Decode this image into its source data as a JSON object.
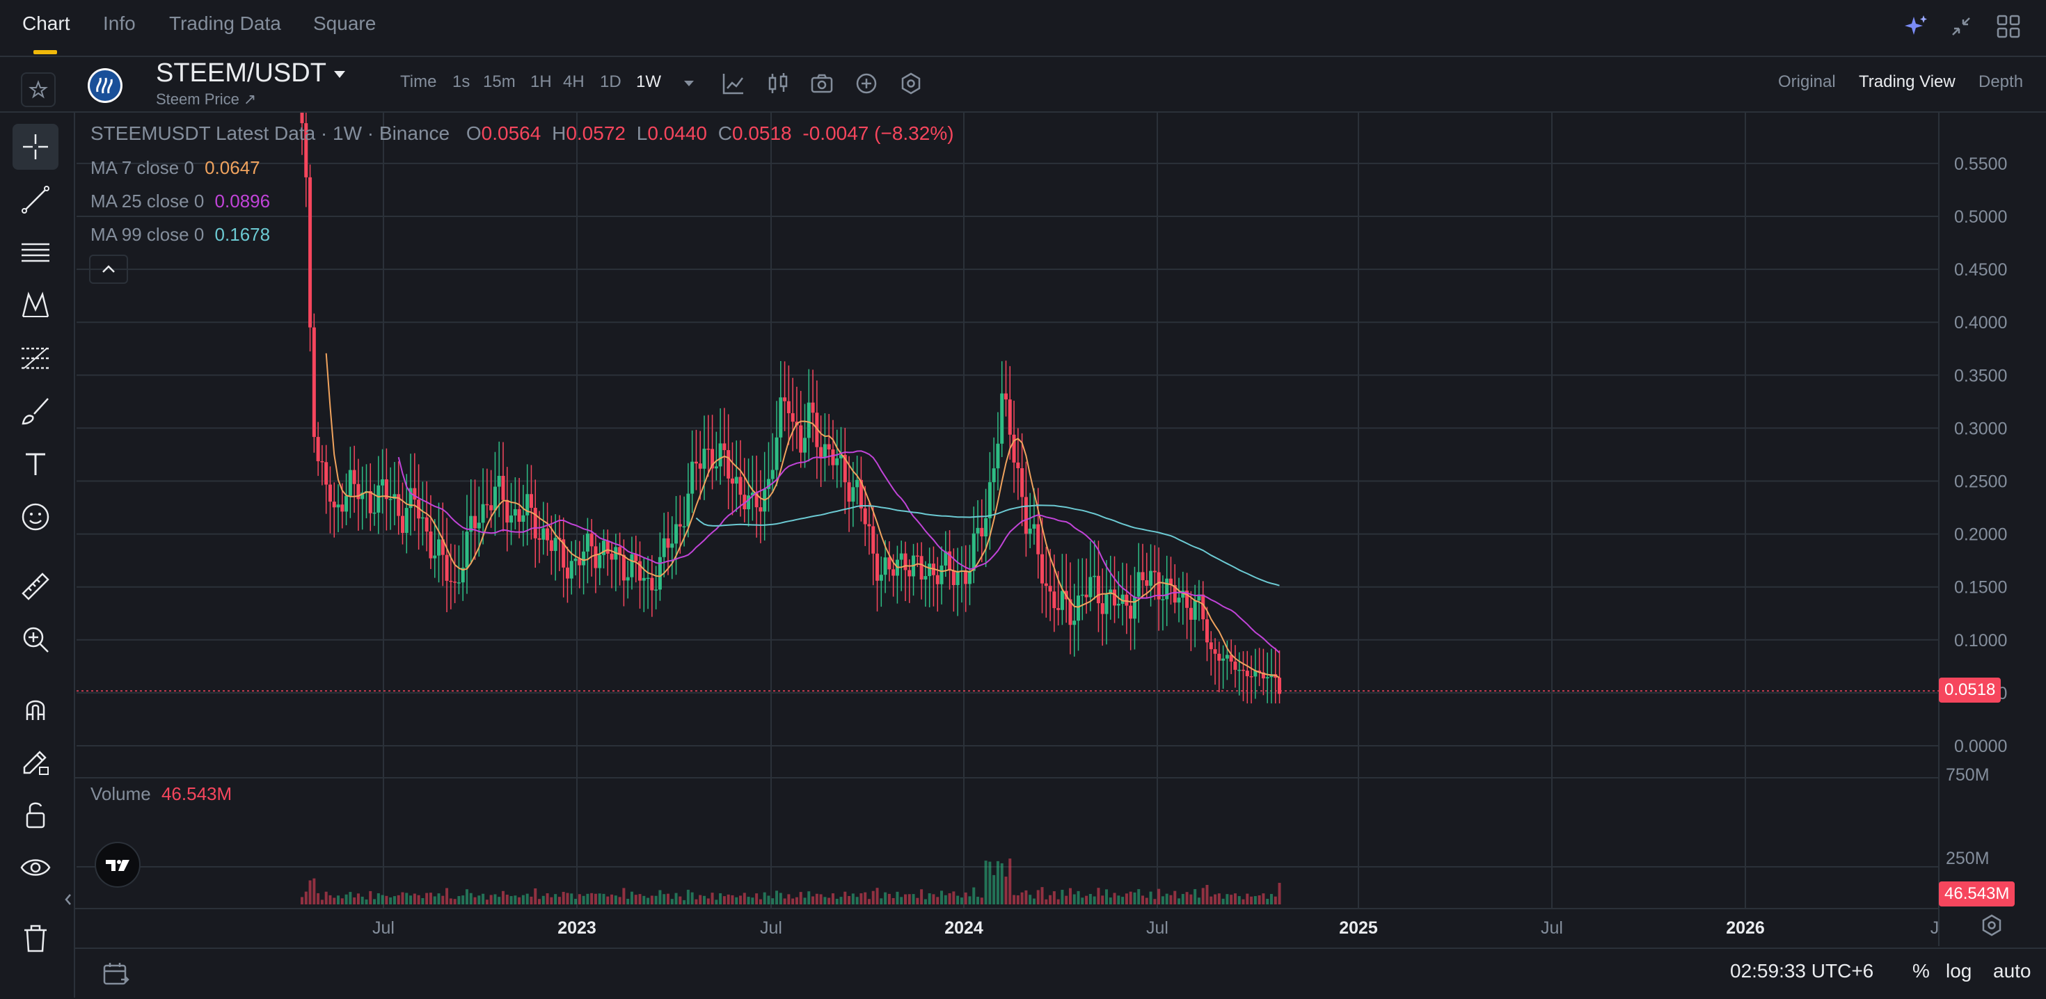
{
  "top_tabs": {
    "items": [
      "Chart",
      "Info",
      "Trading Data",
      "Square"
    ],
    "active": "Chart"
  },
  "header": {
    "pair": "STEEM/USDT",
    "subtitle": "Steem Price ↗",
    "timeframes": [
      "Time",
      "1s",
      "15m",
      "1H",
      "4H",
      "1D",
      "1W"
    ],
    "active_timeframe": "1W",
    "view_options": [
      "Original",
      "Trading View",
      "Depth"
    ],
    "active_view": "Trading View"
  },
  "icons": {
    "top_right": [
      "ai-sparkle-icon",
      "collapse-icon",
      "layout-grid-icon"
    ],
    "header": [
      "favorite-star-icon",
      "steem-logo-icon",
      "pair-dropdown-icon",
      "timeframe-dropdown-icon",
      "indicator-icon",
      "chart-type-icon",
      "screenshot-icon",
      "add-icon",
      "settings-hex-icon"
    ],
    "toolbar": [
      "crosshair-icon",
      "trend-line-icon",
      "horizontal-lines-icon",
      "pattern-icon",
      "fib-icon",
      "brush-icon",
      "text-icon",
      "emoji-icon",
      "ruler-icon",
      "zoom-in-icon",
      "magnet-icon",
      "lock-drawing-icon",
      "lock-icon",
      "eye-icon",
      "trash-icon"
    ]
  },
  "legend": {
    "symbol": "STEEMUSDT Latest Data · 1W · Binance",
    "o_label": "O",
    "o": "0.0564",
    "h_label": "H",
    "h": "0.0572",
    "l_label": "L",
    "l": "0.0440",
    "c_label": "C",
    "c": "0.0518",
    "change": "-0.0047 (−8.32%)",
    "ma7_label": "MA 7 close 0",
    "ma7_value": "0.0647",
    "ma25_label": "MA 25 close 0",
    "ma25_value": "0.0896",
    "ma99_label": "MA 99 close 0",
    "ma99_value": "0.1678",
    "volume_label": "Volume",
    "volume_value": "46.543M"
  },
  "colors": {
    "background": "#181a20",
    "up": "#2ebd85",
    "down": "#f6465d",
    "ma7": "#f0a35e",
    "ma25": "#c144d8",
    "ma99": "#6ccad3",
    "accent": "#f0b90b"
  },
  "chart_data": {
    "type": "candlestick",
    "interval": "1W",
    "price_axis_ticks": [
      "0.5500",
      "0.5000",
      "0.4500",
      "0.4000",
      "0.3500",
      "0.3000",
      "0.2500",
      "0.2000",
      "0.1500",
      "0.1000",
      "0.0500",
      "0.0000"
    ],
    "ylim": [
      0,
      0.58
    ],
    "volume_axis_ticks": [
      "750M",
      "250M"
    ],
    "volume_ylim": [
      0,
      1000000000
    ],
    "time_axis_labels": [
      "Jul",
      "2023",
      "Jul",
      "2024",
      "Jul",
      "2025",
      "Jul",
      "2026",
      "J"
    ],
    "last_price": "0.0518",
    "last_volume": "46.543M",
    "series": [
      {
        "name": "MA 7 close 0",
        "kind": "line"
      },
      {
        "name": "MA 25 close 0",
        "kind": "line"
      },
      {
        "name": "MA 99 close 0",
        "kind": "line"
      },
      {
        "name": "Volume",
        "kind": "bar"
      }
    ],
    "grid": true
  },
  "status": {
    "clock": "02:59:33 UTC+6",
    "scale_percent": "%",
    "scale_log": "log",
    "scale_auto": "auto"
  }
}
